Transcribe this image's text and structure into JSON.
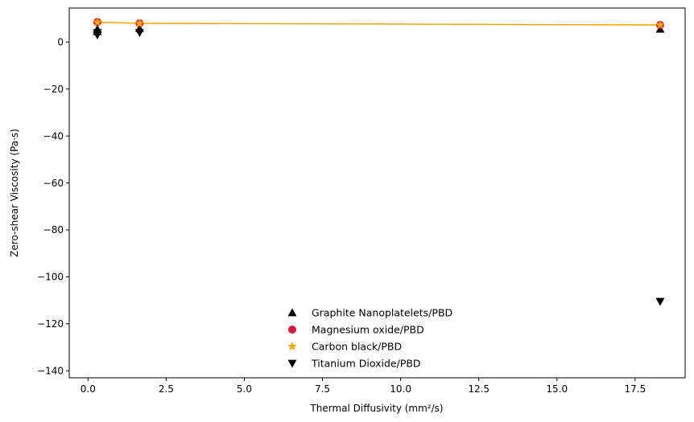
{
  "chart_data": {
    "type": "scatter",
    "xlabel": "Thermal Diffusivity (mm²/s)",
    "ylabel": "Zero-shear Viscosity (Pa·s)",
    "xlim": [
      -0.6,
      19.1
    ],
    "ylim": [
      -143,
      14.5
    ],
    "x_ticks": [
      0.0,
      2.5,
      5.0,
      7.5,
      10.0,
      12.5,
      15.0,
      17.5
    ],
    "x_tick_labels": [
      "0.0",
      "2.5",
      "5.0",
      "7.5",
      "10.0",
      "12.5",
      "15.0",
      "17.5"
    ],
    "y_ticks": [
      0,
      -20,
      -40,
      -60,
      -80,
      -100,
      -120,
      -140
    ],
    "y_tick_labels": [
      "0",
      "−20",
      "−40",
      "−60",
      "−80",
      "−100",
      "−120",
      "−140"
    ],
    "grid": false,
    "legend_position": "lower-center",
    "series": [
      {
        "name": "Graphite Nanoplatelets/PBD",
        "marker": "triangle-up",
        "color": "#000000",
        "x": [
          0.3,
          0.3,
          1.65,
          18.3
        ],
        "y": [
          5.5,
          4.5,
          5.8,
          5.5
        ]
      },
      {
        "name": "Magnesium oxide/PBD",
        "marker": "circle",
        "color": "#dc143c",
        "x": [
          0.3,
          1.65,
          18.3
        ],
        "y": [
          8.5,
          8.0,
          7.3
        ]
      },
      {
        "name": "Carbon black/PBD",
        "marker": "star",
        "color": "#ffa500",
        "x": [
          0.3,
          1.65,
          18.3
        ],
        "y": [
          8.5,
          8.0,
          7.3
        ]
      },
      {
        "name": "Titanium Dioxide/PBD",
        "marker": "triangle-down",
        "color": "#000000",
        "x": [
          0.3,
          0.3,
          1.65,
          18.3
        ],
        "y": [
          4.0,
          3.0,
          4.0,
          -110.5
        ]
      }
    ],
    "lines": [
      {
        "color": "#ffa500",
        "x": [
          0.3,
          1.65,
          18.3
        ],
        "y": [
          8.5,
          8.0,
          7.3
        ]
      }
    ]
  }
}
